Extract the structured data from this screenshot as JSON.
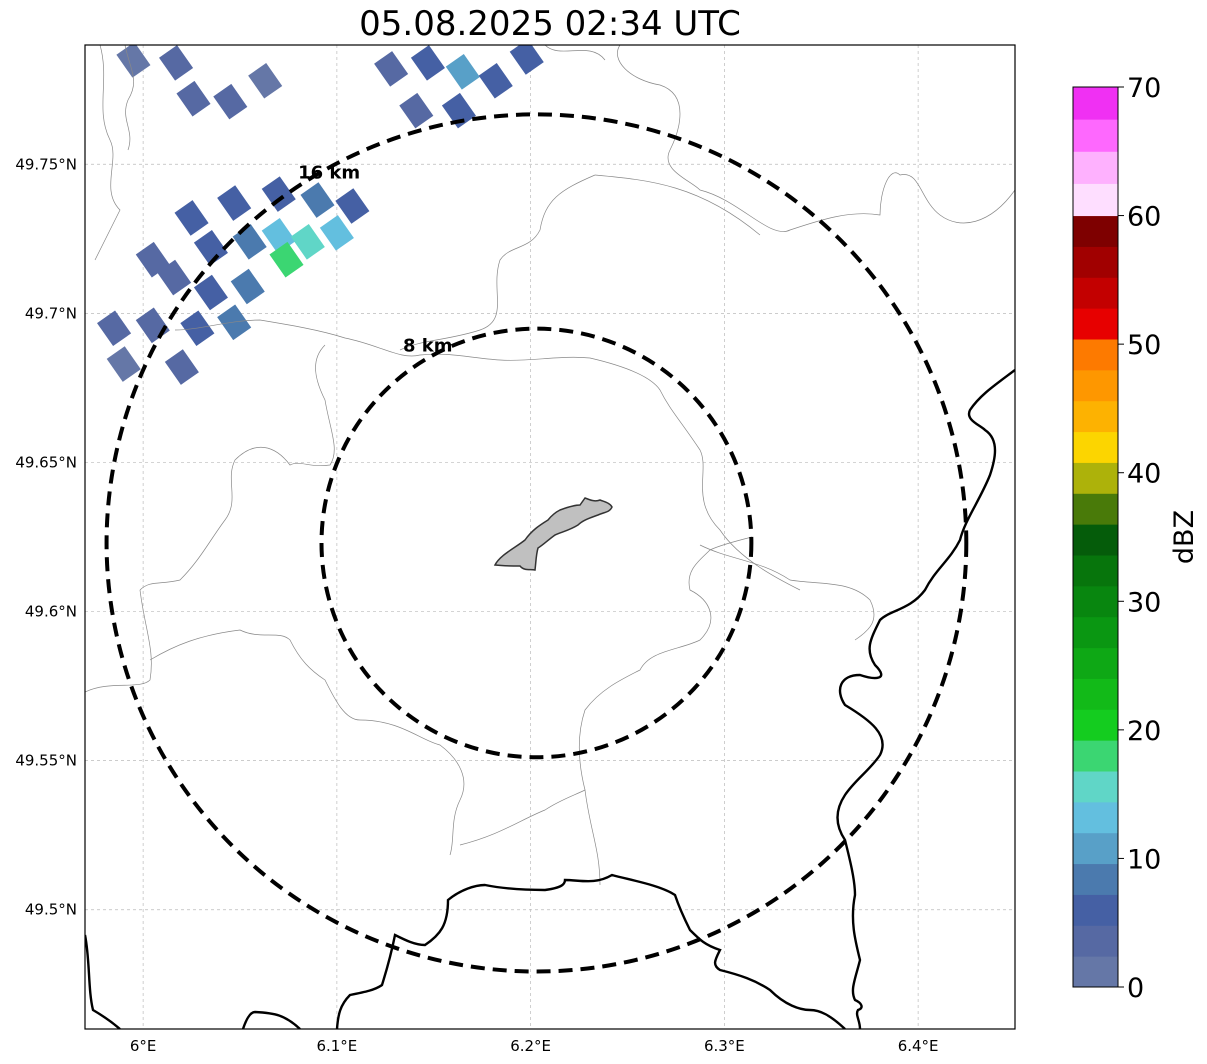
{
  "title": "05.08.2025 02:34 UTC",
  "map": {
    "lon_range": [
      5.97,
      6.45
    ],
    "lat_range": [
      49.46,
      49.79
    ],
    "lon_ticks": [
      {
        "value": 6.0,
        "label": "6°E"
      },
      {
        "value": 6.1,
        "label": "6.1°E"
      },
      {
        "value": 6.2,
        "label": "6.2°E"
      },
      {
        "value": 6.3,
        "label": "6.3°E"
      },
      {
        "value": 6.4,
        "label": "6.4°E"
      }
    ],
    "lat_ticks": [
      {
        "value": 49.75,
        "label": "49.75°N"
      },
      {
        "value": 49.7,
        "label": "49.7°N"
      },
      {
        "value": 49.65,
        "label": "49.65°N"
      },
      {
        "value": 49.6,
        "label": "49.6°N"
      },
      {
        "value": 49.55,
        "label": "49.55°N"
      },
      {
        "value": 49.5,
        "label": "49.5°N"
      }
    ],
    "gridlines": true,
    "center": {
      "lon": 6.203,
      "lat": 49.623
    },
    "rings": [
      {
        "radius_km": 8,
        "label": "8 km"
      },
      {
        "radius_km": 16,
        "label": "16 km"
      }
    ]
  },
  "colorbar": {
    "label": "dBZ",
    "min": 0,
    "max": 70,
    "ticks": [
      "0",
      "10",
      "20",
      "30",
      "40",
      "50",
      "60",
      "70"
    ],
    "colors": [
      "#6577a7",
      "#5669a3",
      "#4560a4",
      "#4b7aae",
      "#58a0c8",
      "#63bfdf",
      "#60d6c7",
      "#3bd672",
      "#14cc1f",
      "#12ba18",
      "#0ea815",
      "#0a9712",
      "#08860f",
      "#07750c",
      "#055c0a",
      "#497a09",
      "#adb20a",
      "#fcd500",
      "#fdb201",
      "#fe9700",
      "#fd7a00",
      "#e70000",
      "#c30000",
      "#a10000",
      "#7e0000",
      "#fedeff",
      "#feb1fe",
      "#fe68fe",
      "#f030f3"
    ]
  },
  "echoes": [
    {
      "lon": 5.995,
      "lat": 49.785,
      "dbz": 2
    },
    {
      "lon": 6.017,
      "lat": 49.784,
      "dbz": 4
    },
    {
      "lon": 6.026,
      "lat": 49.772,
      "dbz": 3
    },
    {
      "lon": 6.045,
      "lat": 49.771,
      "dbz": 4
    },
    {
      "lon": 6.063,
      "lat": 49.778,
      "dbz": 2
    },
    {
      "lon": 6.128,
      "lat": 49.782,
      "dbz": 3
    },
    {
      "lon": 6.147,
      "lat": 49.784,
      "dbz": 6
    },
    {
      "lon": 6.165,
      "lat": 49.781,
      "dbz": 11
    },
    {
      "lon": 6.182,
      "lat": 49.778,
      "dbz": 6
    },
    {
      "lon": 6.198,
      "lat": 49.786,
      "dbz": 5
    },
    {
      "lon": 6.141,
      "lat": 49.768,
      "dbz": 4
    },
    {
      "lon": 6.163,
      "lat": 49.768,
      "dbz": 7
    },
    {
      "lon": 6.005,
      "lat": 49.718,
      "dbz": 3
    },
    {
      "lon": 6.025,
      "lat": 49.732,
      "dbz": 5
    },
    {
      "lon": 6.047,
      "lat": 49.737,
      "dbz": 6
    },
    {
      "lon": 6.07,
      "lat": 49.74,
      "dbz": 7
    },
    {
      "lon": 6.09,
      "lat": 49.738,
      "dbz": 9
    },
    {
      "lon": 6.108,
      "lat": 49.736,
      "dbz": 7
    },
    {
      "lon": 6.035,
      "lat": 49.722,
      "dbz": 7
    },
    {
      "lon": 6.055,
      "lat": 49.724,
      "dbz": 9
    },
    {
      "lon": 6.07,
      "lat": 49.726,
      "dbz": 12
    },
    {
      "lon": 6.085,
      "lat": 49.724,
      "dbz": 15
    },
    {
      "lon": 6.1,
      "lat": 49.727,
      "dbz": 13
    },
    {
      "lon": 6.074,
      "lat": 49.718,
      "dbz": 17
    },
    {
      "lon": 6.054,
      "lat": 49.709,
      "dbz": 9
    },
    {
      "lon": 6.035,
      "lat": 49.707,
      "dbz": 6
    },
    {
      "lon": 6.016,
      "lat": 49.712,
      "dbz": 4
    },
    {
      "lon": 5.985,
      "lat": 49.695,
      "dbz": 3
    },
    {
      "lon": 6.005,
      "lat": 49.696,
      "dbz": 4
    },
    {
      "lon": 6.028,
      "lat": 49.695,
      "dbz": 6
    },
    {
      "lon": 6.047,
      "lat": 49.697,
      "dbz": 8
    },
    {
      "lon": 5.99,
      "lat": 49.683,
      "dbz": 2
    },
    {
      "lon": 6.02,
      "lat": 49.682,
      "dbz": 4
    }
  ],
  "labels": {
    "lon_axis": "",
    "lat_axis": ""
  }
}
